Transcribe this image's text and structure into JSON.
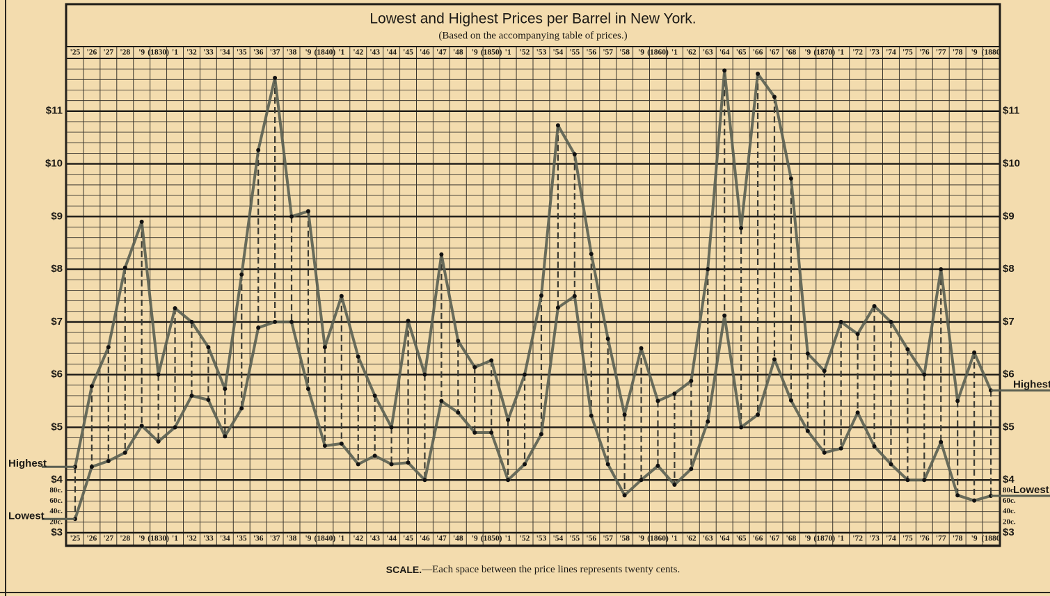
{
  "chart_data": {
    "type": "line",
    "title": "Lowest and Highest Prices per Barrel in New York.",
    "subtitle": "(Based on the accompanying table of prices.)",
    "note": {
      "label": "SCALE.",
      "text": "—Each space between the price lines represents twenty cents."
    },
    "categories": [
      "'25",
      "'26",
      "'27",
      "'28",
      "'9",
      "(1830)",
      "'1",
      "'32",
      "'33",
      "'34",
      "'35",
      "'36",
      "'37",
      "'38",
      "'9",
      "(1840)",
      "'1",
      "'42",
      "'43",
      "'44",
      "'45",
      "'46",
      "'47",
      "'48",
      "'9",
      "(1850)",
      "'1",
      "'52",
      "'53",
      "'54",
      "'55",
      "'56",
      "'57",
      "'58",
      "'9",
      "(1860)",
      "'1",
      "'62",
      "'63",
      "'64",
      "'65",
      "'66",
      "'67",
      "'68",
      "'9",
      "(1870)",
      "'1",
      "'72",
      "'73",
      "'74",
      "'75",
      "'76",
      "'77",
      "'78",
      "'9",
      "(1880"
    ],
    "series": [
      {
        "name": "Highest",
        "color": "#5a5f52",
        "values": [
          4.25,
          5.78,
          6.52,
          8.03,
          8.9,
          6.0,
          7.26,
          7.0,
          6.52,
          5.73,
          7.9,
          10.26,
          11.63,
          9.0,
          9.1,
          6.52,
          7.49,
          6.34,
          5.6,
          5.0,
          7.02,
          6.0,
          8.28,
          6.64,
          6.14,
          6.27,
          5.14,
          6.0,
          7.5,
          10.73,
          10.18,
          8.29,
          6.68,
          5.24,
          6.5,
          5.5,
          5.64,
          5.88,
          8.0,
          11.77,
          8.78,
          11.71,
          11.27,
          9.72,
          6.4,
          6.07,
          7.0,
          6.77,
          7.3,
          7.0,
          6.48,
          6.0,
          8.0,
          5.5,
          6.42,
          5.7
        ]
      },
      {
        "name": "Lowest",
        "color": "#5a5f52",
        "values": [
          3.26,
          4.25,
          4.36,
          4.52,
          5.03,
          4.73,
          5.0,
          5.6,
          5.52,
          4.83,
          5.36,
          6.89,
          7.0,
          7.0,
          5.73,
          4.65,
          4.69,
          4.3,
          4.46,
          4.3,
          4.33,
          4.0,
          5.5,
          5.28,
          4.9,
          4.9,
          4.0,
          4.3,
          4.87,
          7.27,
          7.49,
          5.22,
          4.3,
          3.71,
          4.0,
          4.27,
          3.91,
          4.21,
          5.11,
          7.12,
          5.0,
          5.24,
          6.29,
          5.51,
          4.93,
          4.52,
          4.6,
          5.28,
          4.64,
          4.3,
          4.0,
          4.0,
          4.72,
          3.71,
          3.61,
          3.7
        ]
      }
    ],
    "ylim": [
      3,
      12
    ],
    "yticks": [
      {
        "value": 3,
        "label": "$3"
      },
      {
        "value": 3.2,
        "label": "20c."
      },
      {
        "value": 3.4,
        "label": "40c."
      },
      {
        "value": 3.6,
        "label": "60c."
      },
      {
        "value": 3.8,
        "label": "80c."
      },
      {
        "value": 4,
        "label": "$4"
      },
      {
        "value": 5,
        "label": "$5"
      },
      {
        "value": 6,
        "label": "$6"
      },
      {
        "value": 7,
        "label": "$7"
      },
      {
        "value": 8,
        "label": "$8"
      },
      {
        "value": 9,
        "label": "$9"
      },
      {
        "value": 10,
        "label": "$10"
      },
      {
        "value": 11,
        "label": "$11"
      }
    ],
    "grid": true,
    "minor_grid": 0.2
  }
}
